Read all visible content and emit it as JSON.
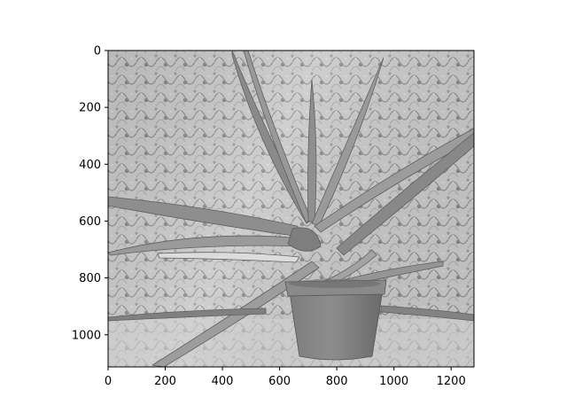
{
  "chart_data": {
    "type": "image",
    "title": "",
    "xlabel": "",
    "ylabel": "",
    "colormap": "gray",
    "image_width": 1280,
    "image_height": 1113,
    "xlim": [
      0,
      1280
    ],
    "ylim": [
      1113,
      0
    ],
    "x_ticks": [
      0,
      200,
      400,
      600,
      800,
      1000,
      1200
    ],
    "x_tick_labels": [
      "0",
      "200",
      "400",
      "600",
      "800",
      "1000",
      "1200"
    ],
    "y_ticks": [
      0,
      200,
      400,
      600,
      800,
      1000
    ],
    "y_tick_labels": [
      "0",
      "200",
      "400",
      "600",
      "800",
      "1000"
    ],
    "grid": false
  }
}
